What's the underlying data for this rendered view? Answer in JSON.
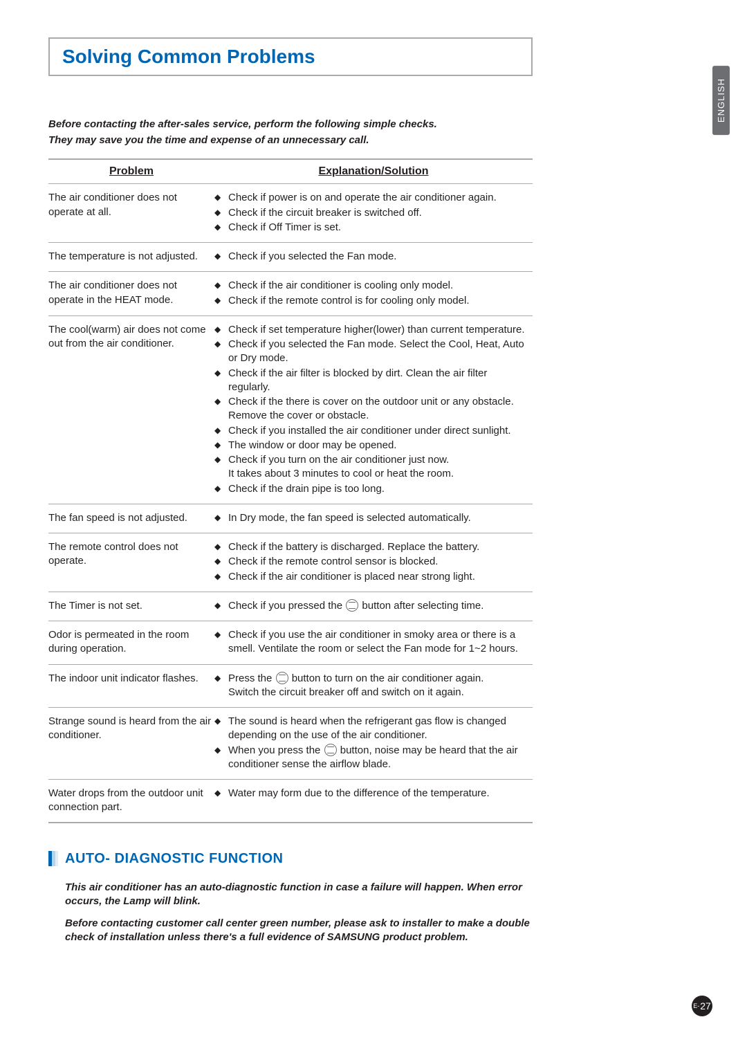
{
  "lang_tab": "ENGLISH",
  "title": "Solving Common Problems",
  "intro_line1": "Before contacting the after-sales service, perform the following simple checks.",
  "intro_line2": "They may save you the time and expense of an unnecessary call.",
  "table": {
    "col_problem": "Problem",
    "col_solution": "Explanation/Solution",
    "rows": [
      {
        "problem": "The air conditioner does not operate at all.",
        "solutions": [
          "Check if power is on and operate the air conditioner again.",
          "Check if the circuit breaker is switched off.",
          "Check if Off Timer is set."
        ]
      },
      {
        "problem": "The temperature is not adjusted.",
        "solutions": [
          "Check if you selected the Fan mode."
        ]
      },
      {
        "problem": "The air conditioner does not operate in the HEAT mode.",
        "solutions": [
          "Check if the air conditioner is cooling only model.",
          "Check if the remote control is for cooling only model."
        ]
      },
      {
        "problem": "The cool(warm) air does not come out from the air conditioner.",
        "solutions": [
          "Check if set temperature higher(lower) than current temperature.",
          "Check if you selected the Fan mode. Select the Cool, Heat, Auto or Dry mode.",
          "Check if the air filter is blocked by dirt. Clean the air filter regularly.",
          "Check if the there is cover on the outdoor unit or any obstacle. Remove the cover or obstacle.",
          "Check if you installed the air conditioner under direct sunlight.",
          "The window or door may be opened.",
          "Check if you turn on the air conditioner just now.\nIt takes about 3 minutes to cool or heat the room.",
          "Check if the drain pipe is too long."
        ]
      },
      {
        "problem": "The fan speed is not adjusted.",
        "solutions": [
          "In Dry mode, the fan speed is selected automatically."
        ]
      },
      {
        "problem": "The remote control does not operate.",
        "solutions": [
          "Check if the battery is discharged. Replace the battery.",
          "Check if the remote control sensor is blocked.",
          "Check if the air conditioner is placed near strong light."
        ]
      },
      {
        "problem": "The Timer is not set.",
        "solutions": [
          "Check if you pressed the {icon} button after selecting time."
        ]
      },
      {
        "problem": "Odor is permeated in the room during operation.",
        "solutions": [
          "Check if you use the air conditioner in smoky area or there is a smell. Ventilate the room or select the Fan mode for 1~2 hours."
        ]
      },
      {
        "problem": "The indoor unit indicator flashes.",
        "solutions": [
          "Press the {icon} button to turn on the air conditioner again.\nSwitch the circuit breaker off and switch on it again."
        ]
      },
      {
        "problem": "Strange sound is heard from the air conditioner.",
        "solutions": [
          "The sound is heard when the refrigerant gas flow is changed depending on the use of the air conditioner.",
          "When you press the {icon} button, noise may be heard that the air conditioner sense the airflow blade."
        ]
      },
      {
        "problem": "Water drops from the outdoor unit connection part.",
        "solutions": [
          "Water may form due to the difference of the temperature."
        ]
      }
    ]
  },
  "section2": {
    "heading": "AUTO- DIAGNOSTIC FUNCTION",
    "para1": "This air conditioner has an auto-diagnostic function in case a failure will happen. When error occurs, the Lamp will blink.",
    "para2": "Before contacting customer call center green number, please ask to installer to make a double check of installation unless there's a full evidence of SAMSUNG product problem."
  },
  "page_number": {
    "prefix": "E-",
    "num": "27"
  },
  "colors": {
    "heading_blue": "#0066b3",
    "border_gray": "#a7a9ac",
    "text": "#231f20",
    "tab_bg": "#6d6e71"
  }
}
